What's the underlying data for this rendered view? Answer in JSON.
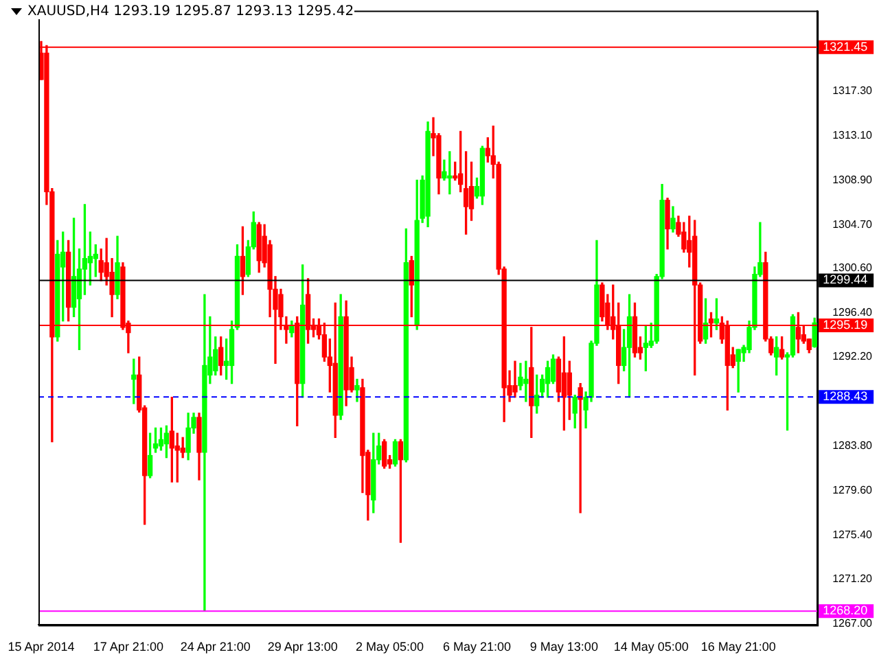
{
  "chart_data": {
    "type": "candlestick",
    "title": "XAUUSD,H4  1293.19 1295.87 1293.13 1295.42",
    "categories": [
      "15 Apr 2014",
      null,
      null,
      null,
      null,
      null,
      null,
      null,
      null,
      null,
      null,
      null,
      null,
      null,
      null,
      null,
      "17 Apr 21:00",
      null,
      null,
      null,
      null,
      null,
      null,
      null,
      null,
      null,
      null,
      null,
      null,
      null,
      null,
      null,
      "24 Apr 21:00",
      null,
      null,
      null,
      null,
      null,
      null,
      null,
      null,
      null,
      null,
      null,
      null,
      null,
      null,
      null,
      "29 Apr 13:00",
      null,
      null,
      null,
      null,
      null,
      null,
      null,
      null,
      null,
      null,
      null,
      null,
      null,
      null,
      null,
      "2 May 05:00",
      null,
      null,
      null,
      null,
      null,
      null,
      null,
      null,
      null,
      null,
      null,
      null,
      null,
      null,
      null,
      "6 May 21:00",
      null,
      null,
      null,
      null,
      null,
      null,
      null,
      null,
      null,
      null,
      null,
      null,
      null,
      null,
      null,
      "9 May 13:00",
      null,
      null,
      null,
      null,
      null,
      null,
      null,
      null,
      null,
      null,
      null,
      null,
      null,
      null,
      null,
      "14 May 05:00",
      null,
      null,
      null,
      null,
      null,
      null,
      null,
      null,
      null,
      null,
      null,
      null,
      null,
      null,
      null,
      "16 May 21:00",
      null,
      null,
      null,
      null,
      null,
      null,
      null,
      null,
      null,
      null,
      null,
      null,
      null,
      null
    ],
    "ohlc": [
      [
        1320.9,
        1322.0,
        1318.4,
        1318.4
      ],
      [
        1320.9,
        1321.6,
        1306.6,
        1307.8
      ],
      [
        1307.8,
        1308.1,
        1284.2,
        1294.1
      ],
      [
        1294.1,
        1303.2,
        1293.7,
        1301.9
      ],
      [
        1300.7,
        1304.0,
        1295.6,
        1302.1
      ],
      [
        1302.1,
        1303.2,
        1295.6,
        1296.9
      ],
      [
        1296.9,
        1305.3,
        1296.0,
        1299.8
      ],
      [
        1297.7,
        1302.4,
        1292.9,
        1300.5
      ],
      [
        1300.5,
        1306.6,
        1298.1,
        1301.5
      ],
      [
        1301.1,
        1304.0,
        1299.0,
        1301.7
      ],
      [
        1301.5,
        1302.8,
        1299.8,
        1301.9
      ],
      [
        1301.3,
        1302.4,
        1299.4,
        1300.2
      ],
      [
        1301.1,
        1303.4,
        1299.0,
        1299.8
      ],
      [
        1300.2,
        1301.5,
        1296.0,
        1298.1
      ],
      [
        1298.1,
        1303.6,
        1297.7,
        1301.1
      ],
      [
        1300.7,
        1301.1,
        1294.8,
        1295.0
      ],
      [
        1295.4,
        1295.6,
        1292.6,
        1294.5
      ],
      [
        1290.1,
        1292.0,
        1287.8,
        1290.5
      ],
      [
        1290.5,
        1292.2,
        1287.0,
        1287.2
      ],
      [
        1287.4,
        1287.6,
        1276.4,
        1281.0
      ],
      [
        1281.0,
        1285.0,
        1280.8,
        1282.9
      ],
      [
        1283.6,
        1285.5,
        1283.2,
        1284.0
      ],
      [
        1283.8,
        1285.5,
        1283.4,
        1284.4
      ],
      [
        1284.0,
        1285.7,
        1282.7,
        1285.0
      ],
      [
        1285.2,
        1288.4,
        1280.4,
        1283.6
      ],
      [
        1283.8,
        1285.0,
        1280.4,
        1283.4
      ],
      [
        1283.6,
        1284.6,
        1282.7,
        1283.2
      ],
      [
        1283.2,
        1286.9,
        1282.5,
        1285.5
      ],
      [
        1285.5,
        1286.9,
        1285.0,
        1286.5
      ],
      [
        1286.5,
        1286.9,
        1280.6,
        1283.2
      ],
      [
        1283.2,
        1298.1,
        1268.2,
        1291.4
      ],
      [
        1290.5,
        1296.0,
        1289.7,
        1292.2
      ],
      [
        1290.9,
        1294.1,
        1290.5,
        1292.9
      ],
      [
        1293.1,
        1294.1,
        1290.5,
        1291.4
      ],
      [
        1291.4,
        1293.9,
        1290.1,
        1291.8
      ],
      [
        1291.4,
        1295.6,
        1289.7,
        1294.8
      ],
      [
        1295.0,
        1302.8,
        1294.8,
        1301.7
      ],
      [
        1301.7,
        1304.5,
        1298.1,
        1299.8
      ],
      [
        1300.0,
        1303.2,
        1299.8,
        1302.6
      ],
      [
        1302.6,
        1305.9,
        1302.4,
        1304.9
      ],
      [
        1304.7,
        1304.9,
        1300.2,
        1301.3
      ],
      [
        1303.6,
        1304.7,
        1300.7,
        1301.1
      ],
      [
        1302.8,
        1303.2,
        1296.0,
        1298.6
      ],
      [
        1298.6,
        1299.8,
        1291.6,
        1296.7
      ],
      [
        1298.1,
        1298.6,
        1294.8,
        1296.0
      ],
      [
        1295.2,
        1296.0,
        1293.5,
        1294.8
      ],
      [
        1294.5,
        1295.6,
        1294.1,
        1295.2
      ],
      [
        1295.4,
        1296.0,
        1285.7,
        1289.7
      ],
      [
        1289.7,
        1300.9,
        1288.4,
        1297.1
      ],
      [
        1298.1,
        1299.6,
        1293.5,
        1294.8
      ],
      [
        1295.2,
        1295.8,
        1294.1,
        1294.8
      ],
      [
        1295.2,
        1295.8,
        1293.9,
        1294.3
      ],
      [
        1294.3,
        1295.4,
        1291.8,
        1292.2
      ],
      [
        1292.2,
        1293.9,
        1288.9,
        1291.4
      ],
      [
        1291.6,
        1297.3,
        1284.6,
        1286.7
      ],
      [
        1286.7,
        1298.1,
        1286.3,
        1296.0
      ],
      [
        1296.0,
        1297.5,
        1287.6,
        1289.1
      ],
      [
        1291.2,
        1292.2,
        1288.9,
        1289.1
      ],
      [
        1289.1,
        1290.1,
        1288.0,
        1289.5
      ],
      [
        1289.3,
        1290.1,
        1279.4,
        1282.9
      ],
      [
        1283.2,
        1283.4,
        1276.8,
        1279.2
      ],
      [
        1278.7,
        1285.0,
        1277.5,
        1282.5
      ],
      [
        1282.5,
        1285.0,
        1282.1,
        1283.8
      ],
      [
        1284.2,
        1284.4,
        1281.7,
        1281.9
      ],
      [
        1282.5,
        1282.9,
        1281.7,
        1282.1
      ],
      [
        1282.1,
        1284.4,
        1281.9,
        1284.2
      ],
      [
        1284.2,
        1284.4,
        1274.7,
        1282.5
      ],
      [
        1282.5,
        1304.3,
        1282.3,
        1301.1
      ],
      [
        1301.3,
        1301.7,
        1296.0,
        1299.0
      ],
      [
        1295.2,
        1308.9,
        1294.8,
        1305.1
      ],
      [
        1305.3,
        1309.3,
        1304.9,
        1308.9
      ],
      [
        1305.5,
        1314.4,
        1304.5,
        1313.5
      ],
      [
        1313.3,
        1314.8,
        1311.2,
        1312.9
      ],
      [
        1313.1,
        1313.3,
        1307.6,
        1309.1
      ],
      [
        1309.1,
        1310.8,
        1308.9,
        1309.7
      ],
      [
        1309.1,
        1311.6,
        1307.6,
        1309.3
      ],
      [
        1309.3,
        1310.6,
        1308.9,
        1309.1
      ],
      [
        1309.5,
        1313.5,
        1307.8,
        1308.5
      ],
      [
        1308.1,
        1311.6,
        1303.8,
        1306.4
      ],
      [
        1308.3,
        1310.6,
        1305.1,
        1306.2
      ],
      [
        1307.4,
        1309.1,
        1307.2,
        1308.3
      ],
      [
        1307.4,
        1312.1,
        1306.6,
        1311.9
      ],
      [
        1311.9,
        1312.9,
        1310.6,
        1311.2
      ],
      [
        1311.2,
        1314.0,
        1309.1,
        1310.4
      ],
      [
        1310.4,
        1310.6,
        1300.0,
        1300.5
      ],
      [
        1300.5,
        1300.7,
        1286.1,
        1289.3
      ],
      [
        1289.5,
        1290.9,
        1288.0,
        1288.6
      ],
      [
        1289.5,
        1291.8,
        1288.4,
        1288.9
      ],
      [
        1289.5,
        1291.6,
        1289.1,
        1290.3
      ],
      [
        1289.7,
        1291.8,
        1288.0,
        1290.1
      ],
      [
        1291.2,
        1295.0,
        1284.6,
        1287.6
      ],
      [
        1287.6,
        1290.5,
        1286.9,
        1288.6
      ],
      [
        1288.9,
        1290.5,
        1288.4,
        1290.1
      ],
      [
        1289.7,
        1291.8,
        1288.4,
        1291.2
      ],
      [
        1289.9,
        1292.4,
        1289.7,
        1292.0
      ],
      [
        1292.0,
        1292.2,
        1288.0,
        1288.9
      ],
      [
        1290.7,
        1294.1,
        1285.3,
        1288.4
      ],
      [
        1290.7,
        1291.8,
        1286.3,
        1288.6
      ],
      [
        1286.9,
        1288.6,
        1285.5,
        1288.4
      ],
      [
        1289.3,
        1289.7,
        1277.5,
        1288.2
      ],
      [
        1287.2,
        1288.9,
        1285.5,
        1288.4
      ],
      [
        1288.4,
        1293.7,
        1288.0,
        1293.5
      ],
      [
        1293.5,
        1303.2,
        1293.3,
        1299.0
      ],
      [
        1299.0,
        1299.2,
        1295.6,
        1296.0
      ],
      [
        1297.3,
        1298.1,
        1294.8,
        1295.2
      ],
      [
        1296.0,
        1299.0,
        1293.9,
        1294.8
      ],
      [
        1295.2,
        1297.3,
        1289.7,
        1291.4
      ],
      [
        1291.4,
        1294.8,
        1290.9,
        1293.1
      ],
      [
        1293.1,
        1298.1,
        1288.4,
        1296.0
      ],
      [
        1296.0,
        1297.3,
        1292.2,
        1292.6
      ],
      [
        1293.1,
        1294.1,
        1292.0,
        1292.6
      ],
      [
        1293.1,
        1295.2,
        1290.9,
        1293.5
      ],
      [
        1293.3,
        1295.4,
        1293.1,
        1293.7
      ],
      [
        1293.7,
        1300.0,
        1293.5,
        1299.8
      ],
      [
        1299.8,
        1308.5,
        1299.6,
        1307.0
      ],
      [
        1307.0,
        1307.2,
        1302.4,
        1304.3
      ],
      [
        1304.3,
        1306.4,
        1304.0,
        1305.3
      ],
      [
        1304.9,
        1305.5,
        1303.6,
        1303.8
      ],
      [
        1304.0,
        1304.9,
        1302.1,
        1302.4
      ],
      [
        1303.2,
        1305.5,
        1300.7,
        1302.1
      ],
      [
        1303.6,
        1305.1,
        1290.5,
        1299.0
      ],
      [
        1299.0,
        1299.2,
        1293.5,
        1293.7
      ],
      [
        1293.9,
        1297.7,
        1293.5,
        1295.4
      ],
      [
        1295.8,
        1296.4,
        1294.1,
        1295.4
      ],
      [
        1295.4,
        1297.7,
        1294.8,
        1295.8
      ],
      [
        1295.4,
        1296.0,
        1293.5,
        1293.9
      ],
      [
        1295.2,
        1295.6,
        1287.2,
        1291.4
      ],
      [
        1292.4,
        1293.1,
        1291.2,
        1291.4
      ],
      [
        1291.8,
        1292.9,
        1288.9,
        1292.9
      ],
      [
        1292.6,
        1293.3,
        1291.8,
        1293.1
      ],
      [
        1292.9,
        1295.6,
        1292.6,
        1295.0
      ],
      [
        1295.0,
        1300.7,
        1294.8,
        1300.0
      ],
      [
        1300.0,
        1304.9,
        1299.8,
        1301.1
      ],
      [
        1301.1,
        1302.1,
        1293.7,
        1293.9
      ],
      [
        1293.9,
        1294.1,
        1292.4,
        1292.6
      ],
      [
        1292.2,
        1294.1,
        1290.5,
        1293.1
      ],
      [
        1292.9,
        1294.1,
        1292.0,
        1292.2
      ],
      [
        1292.2,
        1292.6,
        1285.3,
        1292.4
      ],
      [
        1292.4,
        1296.2,
        1292.2,
        1296.0
      ],
      [
        1295.0,
        1296.4,
        1292.6,
        1293.9
      ],
      [
        1294.3,
        1295.2,
        1293.5,
        1293.7
      ],
      [
        1293.9,
        1293.9,
        1292.6,
        1292.9
      ],
      [
        1293.19,
        1295.87,
        1293.13,
        1295.42
      ]
    ],
    "colors": [
      "#ff0000",
      "#ff0000",
      "#ff0000",
      "#00ff00",
      "#00ff00",
      "#ff0000",
      "#00ff00",
      "#00ff00",
      "#00ff00",
      "#00ff00",
      "#00ff00",
      "#ff0000",
      "#ff0000",
      "#ff0000",
      "#00ff00",
      "#ff0000",
      "#ff0000",
      "#00ff00",
      "#ff0000",
      "#ff0000",
      "#00ff00",
      "#00ff00",
      "#00ff00",
      "#00ff00",
      "#ff0000",
      "#ff0000",
      "#ff0000",
      "#00ff00",
      "#00ff00",
      "#ff0000",
      "#00ff00",
      "#00ff00",
      "#00ff00",
      "#ff0000",
      "#00ff00",
      "#00ff00",
      "#00ff00",
      "#ff0000",
      "#00ff00",
      "#00ff00",
      "#ff0000",
      "#ff0000",
      "#ff0000",
      "#ff0000",
      "#ff0000",
      "#ff0000",
      "#00ff00",
      "#ff0000",
      "#00ff00",
      "#ff0000",
      "#ff0000",
      "#ff0000",
      "#ff0000",
      "#ff0000",
      "#ff0000",
      "#00ff00",
      "#ff0000",
      "#ff0000",
      "#00ff00",
      "#ff0000",
      "#ff0000",
      "#00ff00",
      "#00ff00",
      "#ff0000",
      "#ff0000",
      "#00ff00",
      "#ff0000",
      "#00ff00",
      "#ff0000",
      "#00ff00",
      "#00ff00",
      "#00ff00",
      "#ff0000",
      "#ff0000",
      "#00ff00",
      "#00ff00",
      "#ff0000",
      "#ff0000",
      "#ff0000",
      "#ff0000",
      "#00ff00",
      "#00ff00",
      "#ff0000",
      "#ff0000",
      "#ff0000",
      "#ff0000",
      "#ff0000",
      "#ff0000",
      "#00ff00",
      "#00ff00",
      "#ff0000",
      "#00ff00",
      "#00ff00",
      "#00ff00",
      "#00ff00",
      "#ff0000",
      "#ff0000",
      "#ff0000",
      "#00ff00",
      "#ff0000",
      "#00ff00",
      "#00ff00",
      "#00ff00",
      "#ff0000",
      "#ff0000",
      "#ff0000",
      "#ff0000",
      "#00ff00",
      "#00ff00",
      "#ff0000",
      "#ff0000",
      "#00ff00",
      "#00ff00",
      "#00ff00",
      "#00ff00",
      "#ff0000",
      "#00ff00",
      "#ff0000",
      "#ff0000",
      "#ff0000",
      "#ff0000",
      "#ff0000",
      "#00ff00",
      "#ff0000",
      "#00ff00",
      "#ff0000",
      "#ff0000",
      "#ff0000",
      "#00ff00",
      "#00ff00",
      "#00ff00",
      "#00ff00",
      "#00ff00",
      "#ff0000",
      "#ff0000",
      "#00ff00",
      "#ff0000",
      "#00ff00",
      "#00ff00",
      "#ff0000",
      "#ff0000",
      "#ff0000",
      "#00ff00"
    ],
    "ylim": [
      1266.9,
      1324.9
    ],
    "yticks": [
      {
        "value": 1267.0,
        "label": "1267.00"
      },
      {
        "value": 1271.2,
        "label": "1271.20"
      },
      {
        "value": 1275.4,
        "label": "1275.40"
      },
      {
        "value": 1279.6,
        "label": "1279.60"
      },
      {
        "value": 1283.8,
        "label": "1283.80"
      },
      {
        "value": 1292.2,
        "label": "1292.20"
      },
      {
        "value": 1296.4,
        "label": "1296.40"
      },
      {
        "value": 1300.6,
        "label": "1300.60"
      },
      {
        "value": 1304.7,
        "label": "1304.70"
      },
      {
        "value": 1308.9,
        "label": "1308.90"
      },
      {
        "value": 1313.1,
        "label": "1313.10"
      },
      {
        "value": 1317.3,
        "label": "1317.30"
      }
    ],
    "ref_lines": [
      {
        "axis": "y",
        "value": 1321.45,
        "label": "1321.45",
        "color": "#ff0000"
      },
      {
        "axis": "y",
        "value": 1299.44,
        "label": "1299.44",
        "color": "#000000"
      },
      {
        "axis": "y",
        "value": 1295.19,
        "label": "1295.19",
        "color": "#ff0000"
      },
      {
        "axis": "y",
        "value": 1288.43,
        "label": "1288.43",
        "color": "#0000ff",
        "line_style": "dashed"
      },
      {
        "axis": "y",
        "value": 1268.2,
        "label": "1268.20",
        "color": "#ff00ff"
      }
    ]
  }
}
